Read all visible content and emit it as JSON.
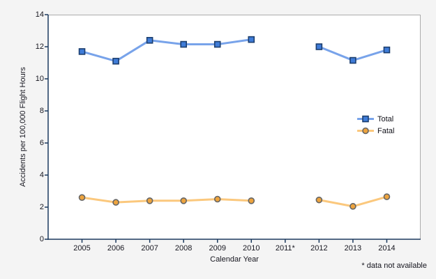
{
  "chart_data": {
    "type": "line",
    "title": "",
    "xlabel": "Calendar Year",
    "ylabel": "Accidents per 100,000 Flight Hours",
    "footnote": "* data not available",
    "categories": [
      "2005",
      "2006",
      "2007",
      "2008",
      "2009",
      "2010",
      "2011*",
      "2012",
      "2013",
      "2014"
    ],
    "yticks": [
      0,
      2,
      4,
      6,
      8,
      10,
      12,
      14
    ],
    "ylim": [
      0,
      14
    ],
    "grid": false,
    "legend_position": "right-middle",
    "colors": {
      "axis": "#1c3a5e",
      "plot_border": "#ababab",
      "background": "#f4f4f4",
      "plot_background": "#ffffff"
    },
    "series": [
      {
        "name": "Total",
        "marker": "square",
        "line_color": "#78a3ea",
        "marker_fill": "#3f7cd8",
        "marker_stroke": "#1c3e6e",
        "values": [
          11.7,
          11.1,
          12.4,
          12.15,
          12.15,
          12.45,
          null,
          12.0,
          11.15,
          11.8
        ]
      },
      {
        "name": "Fatal",
        "marker": "circle",
        "line_color": "#fbc87d",
        "marker_fill": "#eda33d",
        "marker_stroke": "#666666",
        "values": [
          2.6,
          2.3,
          2.4,
          2.4,
          2.5,
          2.4,
          null,
          2.45,
          2.05,
          2.65
        ]
      }
    ]
  }
}
